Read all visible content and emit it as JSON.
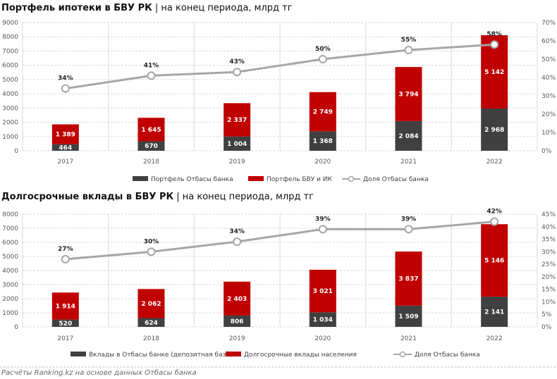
{
  "colors": {
    "otbasy": "#404040",
    "market": "#c00000",
    "share_line": "#a6a6a6",
    "grid": "#d9d9d9"
  },
  "chart_data": [
    {
      "type": "bar",
      "stacked": true,
      "title": "Портфель ипотеки в БВУ РК",
      "subtitle": "на конец периода, млрд тг",
      "categories": [
        "2017",
        "2018",
        "2019",
        "2020",
        "2021",
        "2022"
      ],
      "series": [
        {
          "name": "Портфель Отбасы банка",
          "type": "bar",
          "axis": "left",
          "values": [
            464,
            670,
            1004,
            1368,
            2084,
            2968
          ],
          "labels": [
            "464",
            "670",
            "1 004",
            "1 368",
            "2 084",
            "2 968"
          ]
        },
        {
          "name": "Портфель БВУ и ИК",
          "type": "bar",
          "axis": "left",
          "values": [
            1389,
            1645,
            2337,
            2749,
            3794,
            5142
          ],
          "labels": [
            "1 389",
            "1 645",
            "2 337",
            "2 749",
            "3 794",
            "5 142"
          ]
        },
        {
          "name": "Доля Отбасы банка",
          "type": "line",
          "axis": "right",
          "values": [
            34,
            41,
            43,
            50,
            55,
            58
          ],
          "labels": [
            "34%",
            "41%",
            "43%",
            "50%",
            "55%",
            "58%"
          ]
        }
      ],
      "ylim": [
        0,
        9000
      ],
      "yticks": [
        "0",
        "1000",
        "2000",
        "3000",
        "4000",
        "5000",
        "6000",
        "7000",
        "8000",
        "9000"
      ],
      "y2lim": [
        0,
        70
      ],
      "y2ticks": [
        "0%",
        "10%",
        "20%",
        "30%",
        "40%",
        "50%",
        "60%",
        "70%"
      ],
      "legend": "bottom",
      "grid": true
    },
    {
      "type": "bar",
      "stacked": true,
      "title": "Долгосрочные вклады в БВУ РК",
      "subtitle": "на конец периода, млрд тг",
      "categories": [
        "2017",
        "2018",
        "2019",
        "2020",
        "2021",
        "2022"
      ],
      "series": [
        {
          "name": "Вклады в Отбасы банке (депозитная база)",
          "type": "bar",
          "axis": "left",
          "values": [
            520,
            624,
            806,
            1034,
            1509,
            2141
          ],
          "labels": [
            "520",
            "624",
            "806",
            "1 034",
            "1 509",
            "2 141"
          ]
        },
        {
          "name": "Долгосрочные вклады населения",
          "type": "bar",
          "axis": "left",
          "values": [
            1914,
            2062,
            2403,
            3021,
            3837,
            5146
          ],
          "labels": [
            "1 914",
            "2 062",
            "2 403",
            "3 021",
            "3 837",
            "5 146"
          ]
        },
        {
          "name": "Доля Отбасы банка",
          "type": "line",
          "axis": "right",
          "values": [
            27,
            30,
            34,
            39,
            39,
            42
          ],
          "labels": [
            "27%",
            "30%",
            "34%",
            "39%",
            "39%",
            "42%"
          ]
        }
      ],
      "ylim": [
        0,
        8000
      ],
      "yticks": [
        "0",
        "1000",
        "2000",
        "3000",
        "4000",
        "5000",
        "6000",
        "7000",
        "8000"
      ],
      "y2lim": [
        0,
        45
      ],
      "y2ticks": [
        "0%",
        "5%",
        "10%",
        "15%",
        "20%",
        "25%",
        "30%",
        "35%",
        "40%",
        "45%"
      ],
      "legend": "bottom",
      "grid": true
    }
  ],
  "separator": "|",
  "source": "Расчёты Ranking.kz на основе данных Отбасы банка"
}
